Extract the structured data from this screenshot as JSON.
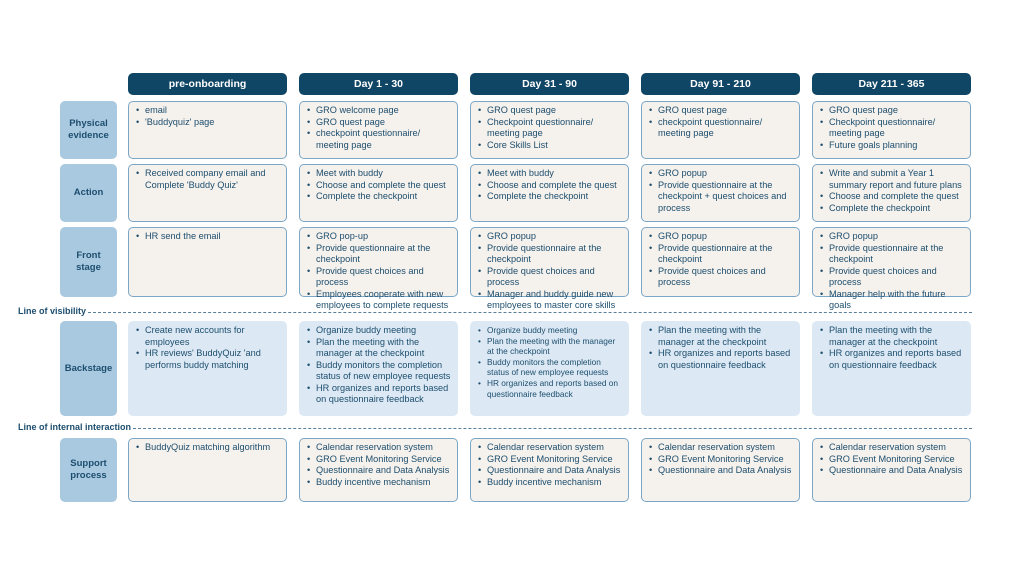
{
  "phases": [
    "pre-onboarding",
    "Day 1 - 30",
    "Day 31 - 90",
    "Day 91 - 210",
    "Day 211 - 365"
  ],
  "lines": {
    "visibility": "Line of visibility",
    "internal_interaction": "Line of internal interaction"
  },
  "colors": {
    "header_bg": "#0f4565",
    "label_bg": "#a9c9e0",
    "cell_bg": "#f5f1ec",
    "cell_border": "#7ba7c7",
    "backstage_bg": "#dce9f4",
    "text": "#1d4e6e"
  },
  "rows": [
    {
      "label": "Physical evidence",
      "cells": [
        [
          "email",
          "'Buddyquiz' page"
        ],
        [
          "GRO welcome page",
          "GRO quest page",
          "checkpoint questionnaire/ meeting page"
        ],
        [
          "GRO quest page",
          "Checkpoint questionnaire/ meeting page",
          "Core Skills List"
        ],
        [
          "GRO quest page",
          "checkpoint questionnaire/ meeting page"
        ],
        [
          "GRO quest page",
          "Checkpoint questionnaire/ meeting page",
          "Future goals planning"
        ]
      ]
    },
    {
      "label": "Action",
      "cells": [
        [
          "Received company email and Complete 'Buddy Quiz'"
        ],
        [
          "Meet with buddy",
          "Choose and complete the quest",
          "Complete the checkpoint"
        ],
        [
          "Meet with buddy",
          "Choose and complete the quest",
          "Complete the checkpoint"
        ],
        [
          "GRO popup",
          "Provide questionnaire at the checkpoint + quest choices and process"
        ],
        [
          "Write and submit a Year 1 summary report and future plans",
          "Choose and complete the quest",
          "Complete the checkpoint"
        ]
      ]
    },
    {
      "label": "Front stage",
      "cells": [
        [
          "HR send the email"
        ],
        [
          "GRO pop-up",
          "Provide questionnaire at the checkpoint",
          "Provide quest choices and process",
          "Employees cooperate with new employees to complete requests"
        ],
        [
          "GRO popup",
          "Provide questionnaire at the checkpoint",
          "Provide quest choices and process",
          "Manager and buddy guide new employees to master core skills"
        ],
        [
          "GRO popup",
          "Provide questionnaire at the checkpoint",
          "Provide quest choices and process"
        ],
        [
          "GRO popup",
          "Provide questionnaire at the checkpoint",
          "Provide quest choices and process",
          "Manager help with the future goals"
        ]
      ]
    },
    {
      "label": "Backstage",
      "cells": [
        [
          "Create new accounts for employees",
          "HR reviews' BuddyQuiz 'and performs buddy matching"
        ],
        [
          "Organize buddy meeting",
          "Plan the meeting with the manager at the checkpoint",
          "Buddy monitors the completion status of new employee requests",
          "HR organizes and reports based on questionnaire feedback"
        ],
        [
          "Organize buddy meeting",
          "Plan the meeting with the manager at the checkpoint",
          "Buddy monitors the completion status of new employee requests",
          "HR organizes and reports based on questionnaire feedback"
        ],
        [
          "Plan the meeting with the manager at the checkpoint",
          "HR organizes and reports based on questionnaire feedback"
        ],
        [
          "Plan the meeting with the manager at the checkpoint",
          "HR organizes and reports based on questionnaire feedback"
        ]
      ]
    },
    {
      "label": "Support process",
      "cells": [
        [
          "BuddyQuiz matching algorithm"
        ],
        [
          "Calendar reservation system",
          "GRO Event Monitoring Service",
          "Questionnaire and Data Analysis",
          "Buddy incentive mechanism"
        ],
        [
          "Calendar reservation system",
          "GRO Event Monitoring Service",
          "Questionnaire and Data Analysis",
          "Buddy incentive mechanism"
        ],
        [
          "Calendar reservation system",
          "GRO Event Monitoring Service",
          "Questionnaire and Data Analysis"
        ],
        [
          "Calendar reservation system",
          "GRO Event Monitoring Service",
          "Questionnaire and Data Analysis"
        ]
      ]
    }
  ]
}
